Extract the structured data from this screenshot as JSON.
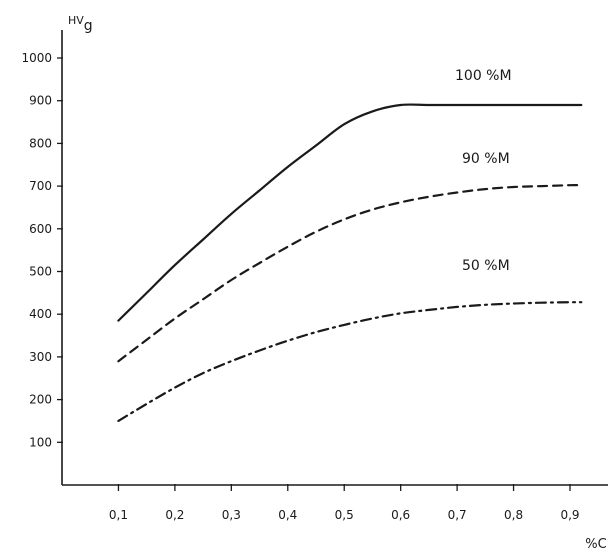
{
  "chart_data": {
    "type": "line",
    "ylabel": "HV",
    "ylabel_sub": "g",
    "xlabel": "%C",
    "xlim": [
      0,
      0.92
    ],
    "ylim": [
      0,
      1050
    ],
    "x_ticks": [
      "0,1",
      "0,2",
      "0,3",
      "0,4",
      "0,5",
      "0,6",
      "0,7",
      "0,8",
      "0,9"
    ],
    "y_ticks": [
      "100",
      "200",
      "300",
      "400",
      "500",
      "600",
      "700",
      "800",
      "900",
      "1000"
    ],
    "grid": false,
    "series": [
      {
        "name": "100 %M",
        "style": "solid",
        "x": [
          0.1,
          0.15,
          0.2,
          0.25,
          0.3,
          0.35,
          0.4,
          0.45,
          0.5,
          0.55,
          0.6,
          0.65,
          0.7,
          0.75,
          0.8,
          0.85,
          0.9,
          0.92
        ],
        "y": [
          385,
          450,
          515,
          575,
          635,
          690,
          745,
          795,
          845,
          875,
          890,
          890,
          890,
          890,
          890,
          890,
          890,
          890
        ]
      },
      {
        "name": "90 %M",
        "style": "dashed",
        "x": [
          0.1,
          0.15,
          0.2,
          0.25,
          0.3,
          0.35,
          0.4,
          0.45,
          0.5,
          0.55,
          0.6,
          0.65,
          0.7,
          0.75,
          0.8,
          0.85,
          0.9,
          0.92
        ],
        "y": [
          290,
          340,
          390,
          435,
          480,
          520,
          558,
          593,
          622,
          645,
          662,
          675,
          685,
          693,
          698,
          700,
          702,
          702
        ]
      },
      {
        "name": "50 %M",
        "style": "dashdot",
        "x": [
          0.1,
          0.15,
          0.2,
          0.25,
          0.3,
          0.35,
          0.4,
          0.45,
          0.5,
          0.55,
          0.6,
          0.65,
          0.7,
          0.75,
          0.8,
          0.85,
          0.9,
          0.92
        ],
        "y": [
          150,
          190,
          228,
          262,
          290,
          315,
          338,
          358,
          375,
          390,
          402,
          410,
          417,
          422,
          425,
          427,
          428,
          428
        ]
      }
    ]
  }
}
